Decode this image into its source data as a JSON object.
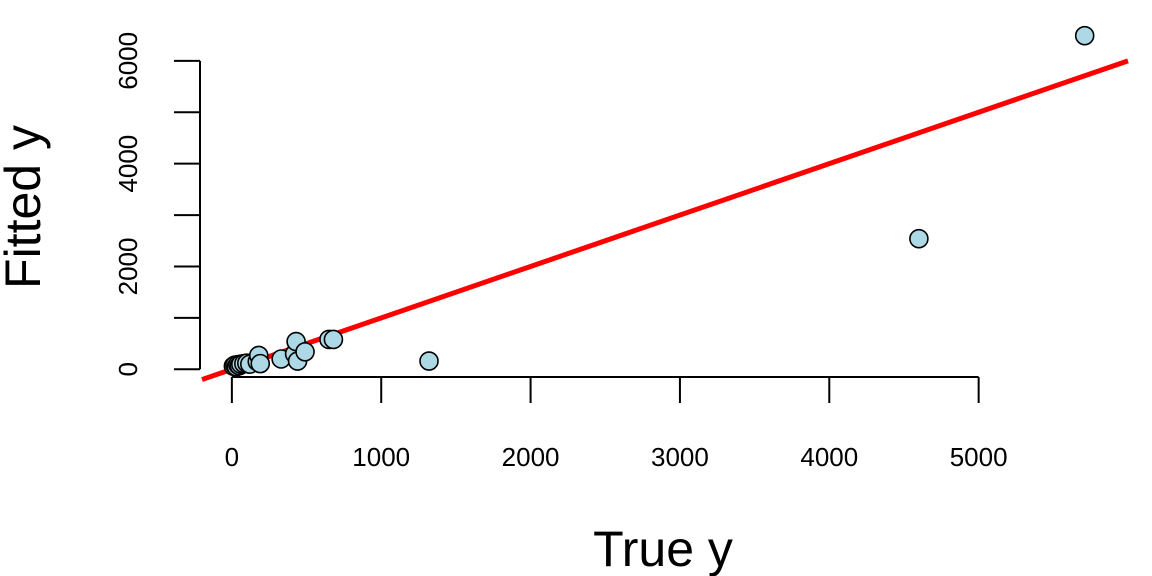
{
  "chart_data": {
    "type": "scatter",
    "xlabel": "True y",
    "ylabel": "Fitted y",
    "xlim": [
      -200,
      6000
    ],
    "ylim": [
      -150,
      6600
    ],
    "x_ticks": [
      0,
      1000,
      2000,
      3000,
      4000,
      5000
    ],
    "x_tick_labels": [
      "0",
      "1000",
      "2000",
      "3000",
      "4000",
      "5000"
    ],
    "y_ticks": [
      0,
      1000,
      2000,
      3000,
      4000,
      5000,
      6000
    ],
    "y_tick_labels": [
      "0",
      "",
      "2000",
      "",
      "4000",
      "",
      "6000"
    ],
    "grid": false,
    "series": [
      {
        "type": "scatter",
        "color": "#ADD8E6",
        "points": [
          {
            "x": 10,
            "y": 60
          },
          {
            "x": 20,
            "y": 80
          },
          {
            "x": 30,
            "y": 50
          },
          {
            "x": 40,
            "y": 90
          },
          {
            "x": 50,
            "y": 70
          },
          {
            "x": 60,
            "y": 100
          },
          {
            "x": 80,
            "y": 110
          },
          {
            "x": 100,
            "y": 120
          },
          {
            "x": 120,
            "y": 100
          },
          {
            "x": 170,
            "y": 150
          },
          {
            "x": 180,
            "y": 270
          },
          {
            "x": 190,
            "y": 110
          },
          {
            "x": 330,
            "y": 200
          },
          {
            "x": 420,
            "y": 300
          },
          {
            "x": 430,
            "y": 540
          },
          {
            "x": 440,
            "y": 160
          },
          {
            "x": 490,
            "y": 340
          },
          {
            "x": 650,
            "y": 580
          },
          {
            "x": 680,
            "y": 580
          },
          {
            "x": 1320,
            "y": 160
          },
          {
            "x": 4600,
            "y": 2540
          },
          {
            "x": 5710,
            "y": 6490
          }
        ]
      },
      {
        "type": "line",
        "color": "#FF0000",
        "x": [
          -200,
          6000
        ],
        "y": [
          -200,
          6000
        ]
      }
    ]
  }
}
